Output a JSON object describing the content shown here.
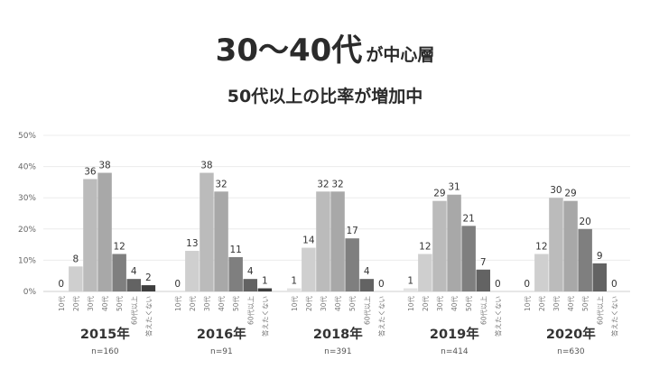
{
  "header": {
    "title_main": "30～40代",
    "title_tail": "が中心層",
    "subtitle": "50代以上の比率が増加中"
  },
  "chart_data": {
    "type": "bar",
    "yaxis": {
      "ylim": [
        0,
        50
      ],
      "ticks": [
        "0%",
        "10%",
        "20%",
        "30%",
        "40%",
        "50%"
      ],
      "grid": true
    },
    "categories": [
      "10代",
      "20代",
      "30代",
      "40代",
      "50代",
      "60代以上",
      "答えたくない"
    ],
    "colors": [
      "#e3e3e3",
      "#cfcfcf",
      "#bbbbbb",
      "#a8a8a8",
      "#7f7f7f",
      "#636363",
      "#3e3e3e"
    ],
    "panels": [
      {
        "label": "2015年",
        "n": "n=160",
        "values": [
          0,
          8,
          36,
          38,
          12,
          4,
          2
        ]
      },
      {
        "label": "2016年",
        "n": "n=91",
        "values": [
          0,
          13,
          38,
          32,
          11,
          4,
          1
        ]
      },
      {
        "label": "2018年",
        "n": "n=391",
        "values": [
          1,
          14,
          32,
          32,
          17,
          4,
          0
        ]
      },
      {
        "label": "2019年",
        "n": "n=414",
        "values": [
          1,
          12,
          29,
          31,
          21,
          7,
          0
        ]
      },
      {
        "label": "2020年",
        "n": "n=630",
        "values": [
          0,
          12,
          30,
          29,
          20,
          9,
          0
        ]
      }
    ]
  }
}
